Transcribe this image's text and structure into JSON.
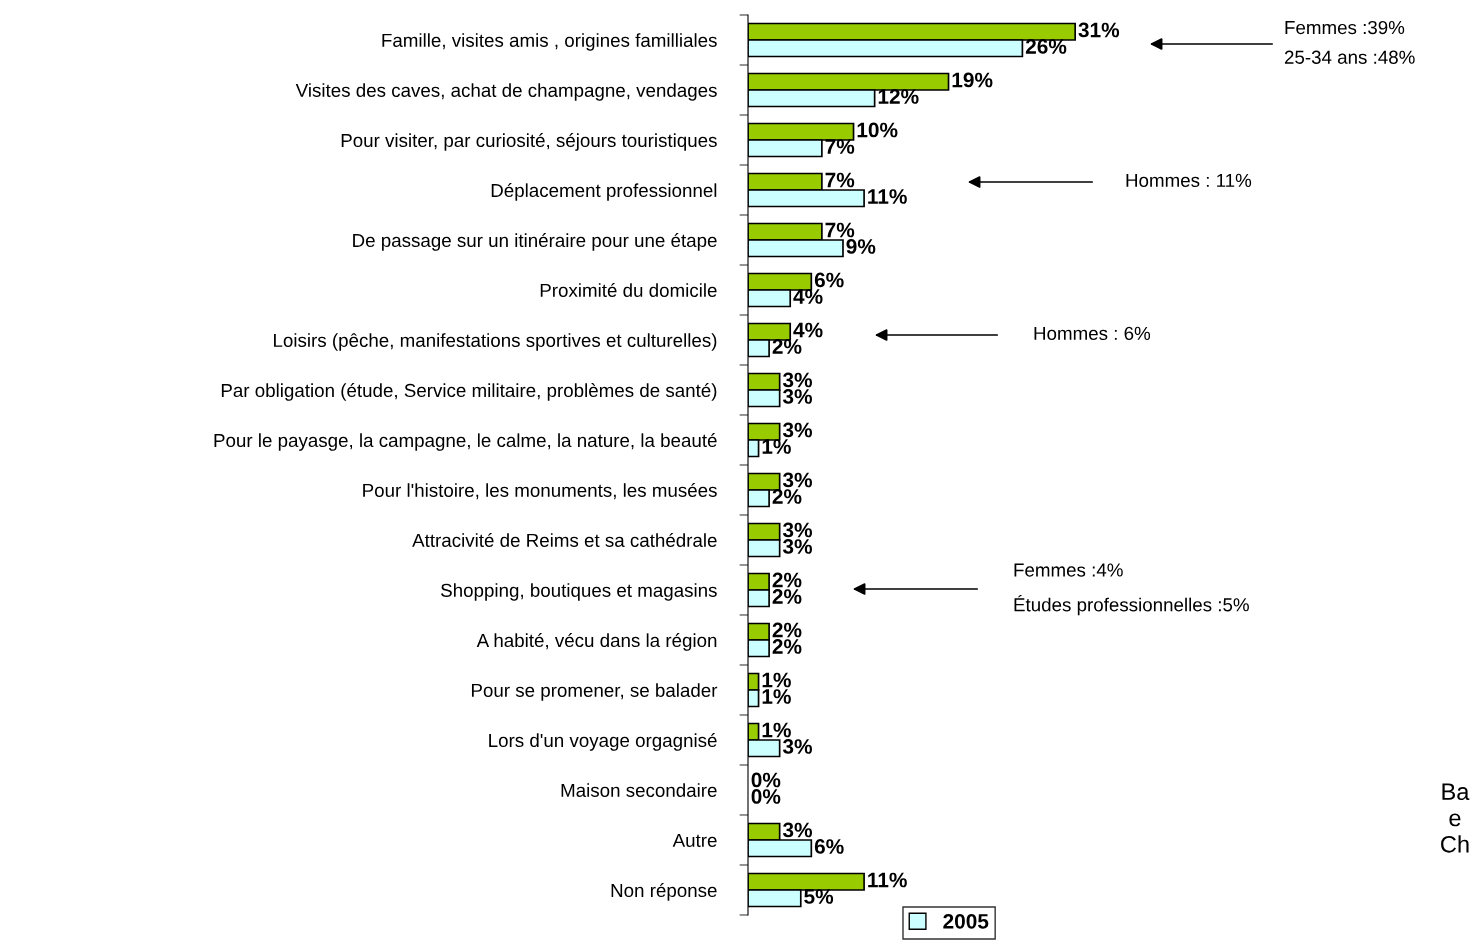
{
  "chart_data": {
    "type": "bar",
    "orientation": "horizontal",
    "categories": [
      "Famille, visites amis , origines familliales",
      "Visites des caves, achat de champagne, vendages",
      "Pour visiter, par curiosité, séjours touristiques",
      "Déplacement professionnel",
      "De passage sur un itinéraire pour une étape",
      "Proximité du domicile",
      "Loisirs (pêche, manifestations sportives et culturelles)",
      "Par obligation (étude, Service militaire, problèmes de santé)",
      "Pour le payasge, la campagne, le calme, la nature, la beauté",
      "Pour l'histoire, les monuments, les musées",
      "Attracivité de Reims et sa cathédrale",
      "Shopping, boutiques et magasins",
      "A habité, vécu dans la région",
      "Pour se promener, se balader",
      "Lors d'un voyage orgagnisé",
      "Maison secondaire",
      "Autre",
      "Non réponse"
    ],
    "series": [
      {
        "color": "#99cc00",
        "values": [
          31,
          19,
          10,
          7,
          7,
          6,
          4,
          3,
          3,
          3,
          3,
          2,
          2,
          1,
          1,
          0,
          3,
          11
        ],
        "value_labels": [
          "31%",
          "19%",
          "10%",
          "7%",
          "7%",
          "6%",
          "4%",
          "3%",
          "3%",
          "3%",
          "3%",
          "2%",
          "2%",
          "1%",
          "1%",
          "0%",
          "3%",
          "11%"
        ]
      },
      {
        "name": "2005",
        "color": "#ccffff",
        "values": [
          26,
          12,
          7,
          11,
          9,
          4,
          2,
          3,
          1,
          2,
          3,
          2,
          2,
          1,
          3,
          0,
          6,
          5
        ],
        "value_labels": [
          "26%",
          "12%",
          "7%",
          "11%",
          "9%",
          "4%",
          "2%",
          "3%",
          "1%",
          "2%",
          "3%",
          "2%",
          "2%",
          "1%",
          "3%",
          "0%",
          "6%",
          "5%"
        ]
      }
    ],
    "tick_labels": "y",
    "legend": "bottom",
    "annotations": [
      "Femmes :39%\n25-34 ans :48%",
      "Hommes : 11%",
      "Hommes : 6%",
      "Femmes :4%\nÉtudes professionnelles :5%",
      "Ba\ne\nCh"
    ]
  }
}
